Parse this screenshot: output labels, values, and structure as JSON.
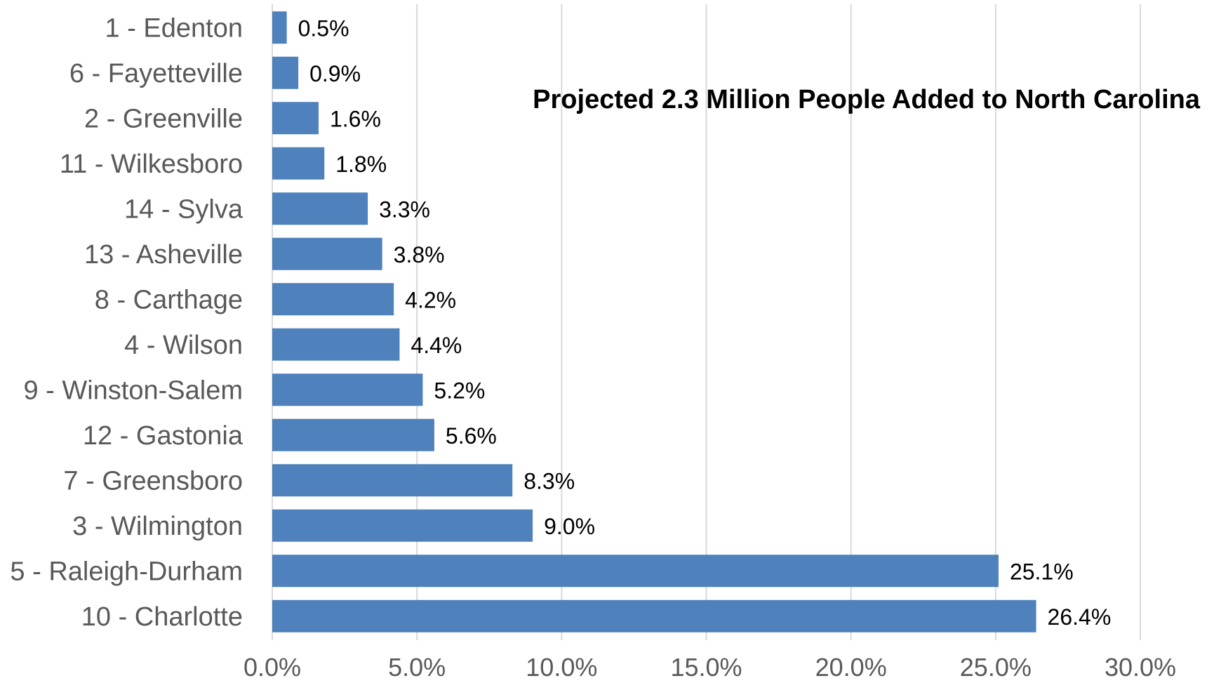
{
  "chart_data": {
    "type": "bar",
    "orientation": "horizontal",
    "title": "Projected 2.3 Million People Added to North Carolina",
    "categories": [
      "1 - Edenton",
      "6 - Fayetteville",
      "2 - Greenville",
      "11 - Wilkesboro",
      "14 - Sylva",
      "13 - Asheville",
      "8 - Carthage",
      "4 - Wilson",
      "9 - Winston-Salem",
      "12 - Gastonia",
      "7 - Greensboro",
      "3 - Wilmington",
      "5 - Raleigh-Durham",
      "10 - Charlotte"
    ],
    "values": [
      0.5,
      0.9,
      1.6,
      1.8,
      3.3,
      3.8,
      4.2,
      4.4,
      5.2,
      5.6,
      8.3,
      9.0,
      25.1,
      26.4
    ],
    "data_labels": [
      "0.5%",
      "0.9%",
      "1.6%",
      "1.8%",
      "3.3%",
      "3.8%",
      "4.2%",
      "4.4%",
      "5.2%",
      "5.6%",
      "8.3%",
      "9.0%",
      "25.1%",
      "26.4%"
    ],
    "xlim": [
      0,
      30
    ],
    "x_ticks": [
      0,
      5,
      10,
      15,
      20,
      25,
      30
    ],
    "x_tick_labels": [
      "0.0%",
      "5.0%",
      "10.0%",
      "15.0%",
      "20.0%",
      "25.0%",
      "30.0%"
    ],
    "xlabel": "",
    "ylabel": "",
    "grid": true,
    "legend": "none",
    "colors": {
      "bar": "#4F81BD",
      "grid": "#D9D9D9",
      "axis_line": "#D9D9D9",
      "category_text": "#595959",
      "tick_text": "#595959",
      "data_label_text": "#000000",
      "title_text": "#000000"
    }
  }
}
